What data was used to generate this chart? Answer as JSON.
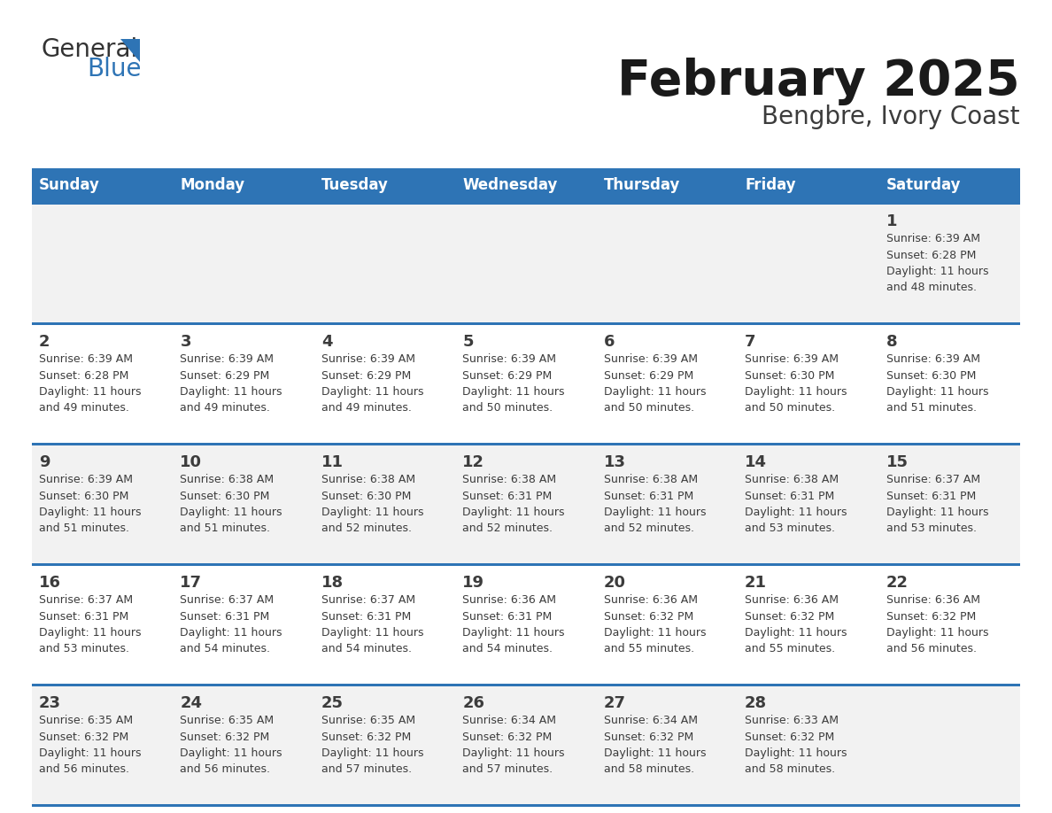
{
  "title": "February 2025",
  "subtitle": "Bengbre, Ivory Coast",
  "header_color": "#2E74B5",
  "header_text_color": "#FFFFFF",
  "cell_bg_even": "#F2F2F2",
  "cell_bg_odd": "#FFFFFF",
  "text_color": "#3C3C3C",
  "border_color": "#2E74B5",
  "days_of_week": [
    "Sunday",
    "Monday",
    "Tuesday",
    "Wednesday",
    "Thursday",
    "Friday",
    "Saturday"
  ],
  "weeks": [
    [
      {
        "day": null,
        "info": null
      },
      {
        "day": null,
        "info": null
      },
      {
        "day": null,
        "info": null
      },
      {
        "day": null,
        "info": null
      },
      {
        "day": null,
        "info": null
      },
      {
        "day": null,
        "info": null
      },
      {
        "day": 1,
        "info": "Sunrise: 6:39 AM\nSunset: 6:28 PM\nDaylight: 11 hours\nand 48 minutes."
      }
    ],
    [
      {
        "day": 2,
        "info": "Sunrise: 6:39 AM\nSunset: 6:28 PM\nDaylight: 11 hours\nand 49 minutes."
      },
      {
        "day": 3,
        "info": "Sunrise: 6:39 AM\nSunset: 6:29 PM\nDaylight: 11 hours\nand 49 minutes."
      },
      {
        "day": 4,
        "info": "Sunrise: 6:39 AM\nSunset: 6:29 PM\nDaylight: 11 hours\nand 49 minutes."
      },
      {
        "day": 5,
        "info": "Sunrise: 6:39 AM\nSunset: 6:29 PM\nDaylight: 11 hours\nand 50 minutes."
      },
      {
        "day": 6,
        "info": "Sunrise: 6:39 AM\nSunset: 6:29 PM\nDaylight: 11 hours\nand 50 minutes."
      },
      {
        "day": 7,
        "info": "Sunrise: 6:39 AM\nSunset: 6:30 PM\nDaylight: 11 hours\nand 50 minutes."
      },
      {
        "day": 8,
        "info": "Sunrise: 6:39 AM\nSunset: 6:30 PM\nDaylight: 11 hours\nand 51 minutes."
      }
    ],
    [
      {
        "day": 9,
        "info": "Sunrise: 6:39 AM\nSunset: 6:30 PM\nDaylight: 11 hours\nand 51 minutes."
      },
      {
        "day": 10,
        "info": "Sunrise: 6:38 AM\nSunset: 6:30 PM\nDaylight: 11 hours\nand 51 minutes."
      },
      {
        "day": 11,
        "info": "Sunrise: 6:38 AM\nSunset: 6:30 PM\nDaylight: 11 hours\nand 52 minutes."
      },
      {
        "day": 12,
        "info": "Sunrise: 6:38 AM\nSunset: 6:31 PM\nDaylight: 11 hours\nand 52 minutes."
      },
      {
        "day": 13,
        "info": "Sunrise: 6:38 AM\nSunset: 6:31 PM\nDaylight: 11 hours\nand 52 minutes."
      },
      {
        "day": 14,
        "info": "Sunrise: 6:38 AM\nSunset: 6:31 PM\nDaylight: 11 hours\nand 53 minutes."
      },
      {
        "day": 15,
        "info": "Sunrise: 6:37 AM\nSunset: 6:31 PM\nDaylight: 11 hours\nand 53 minutes."
      }
    ],
    [
      {
        "day": 16,
        "info": "Sunrise: 6:37 AM\nSunset: 6:31 PM\nDaylight: 11 hours\nand 53 minutes."
      },
      {
        "day": 17,
        "info": "Sunrise: 6:37 AM\nSunset: 6:31 PM\nDaylight: 11 hours\nand 54 minutes."
      },
      {
        "day": 18,
        "info": "Sunrise: 6:37 AM\nSunset: 6:31 PM\nDaylight: 11 hours\nand 54 minutes."
      },
      {
        "day": 19,
        "info": "Sunrise: 6:36 AM\nSunset: 6:31 PM\nDaylight: 11 hours\nand 54 minutes."
      },
      {
        "day": 20,
        "info": "Sunrise: 6:36 AM\nSunset: 6:32 PM\nDaylight: 11 hours\nand 55 minutes."
      },
      {
        "day": 21,
        "info": "Sunrise: 6:36 AM\nSunset: 6:32 PM\nDaylight: 11 hours\nand 55 minutes."
      },
      {
        "day": 22,
        "info": "Sunrise: 6:36 AM\nSunset: 6:32 PM\nDaylight: 11 hours\nand 56 minutes."
      }
    ],
    [
      {
        "day": 23,
        "info": "Sunrise: 6:35 AM\nSunset: 6:32 PM\nDaylight: 11 hours\nand 56 minutes."
      },
      {
        "day": 24,
        "info": "Sunrise: 6:35 AM\nSunset: 6:32 PM\nDaylight: 11 hours\nand 56 minutes."
      },
      {
        "day": 25,
        "info": "Sunrise: 6:35 AM\nSunset: 6:32 PM\nDaylight: 11 hours\nand 57 minutes."
      },
      {
        "day": 26,
        "info": "Sunrise: 6:34 AM\nSunset: 6:32 PM\nDaylight: 11 hours\nand 57 minutes."
      },
      {
        "day": 27,
        "info": "Sunrise: 6:34 AM\nSunset: 6:32 PM\nDaylight: 11 hours\nand 58 minutes."
      },
      {
        "day": 28,
        "info": "Sunrise: 6:33 AM\nSunset: 6:32 PM\nDaylight: 11 hours\nand 58 minutes."
      },
      {
        "day": null,
        "info": null
      }
    ]
  ]
}
